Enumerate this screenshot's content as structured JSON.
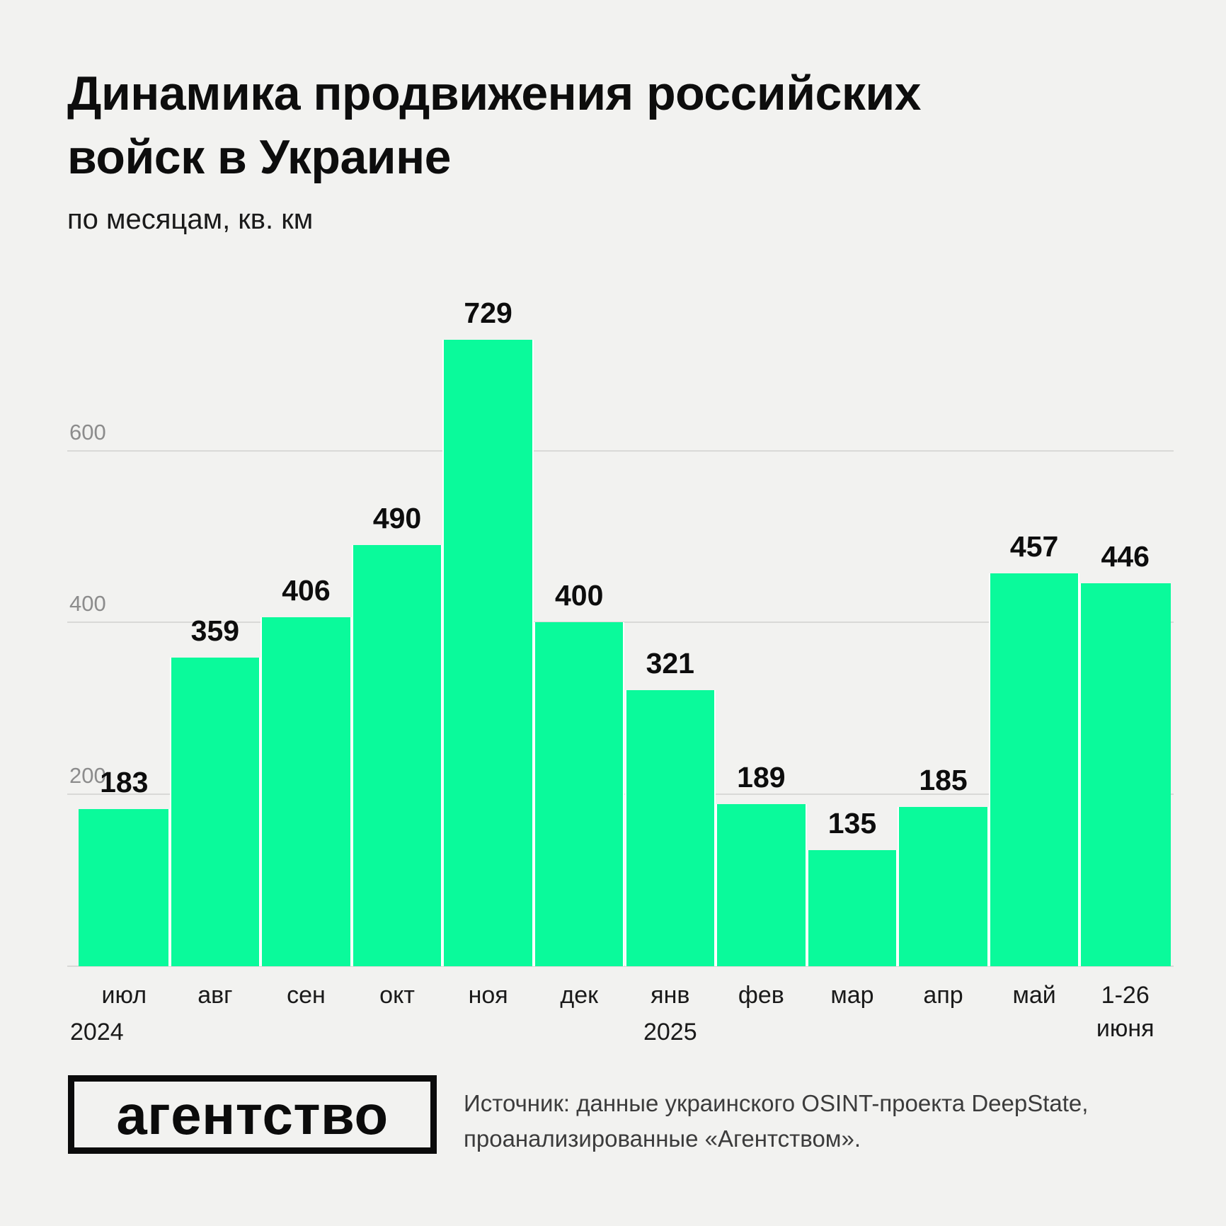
{
  "chart_data": {
    "type": "bar",
    "title": "Динамика продвижения российских войск в Украине",
    "subtitle": "по месяцам, кв. км",
    "categories": [
      "июл",
      "авг",
      "сен",
      "окт",
      "ноя",
      "дек",
      "янв",
      "фев",
      "мар",
      "апр",
      "май",
      "1-26 июня"
    ],
    "values": [
      183,
      359,
      406,
      490,
      729,
      400,
      321,
      189,
      135,
      185,
      457,
      446
    ],
    "year_labels": [
      {
        "text": "2024",
        "slot": 0,
        "align": "left"
      },
      {
        "text": "2025",
        "slot": 6,
        "align": "center"
      }
    ],
    "yticks": [
      200,
      400,
      600
    ],
    "ylim": [
      0,
      760
    ],
    "grid": true,
    "legend": "none",
    "xlabel": "",
    "ylabel": "",
    "bar_color": "#0afa9b",
    "bar_gap_color": "#ffffff",
    "grid_color": "#d9d9d7",
    "tick_label_color": "#8c8c8c",
    "value_label_color": "#0d0d0d",
    "background_color": "#f2f2f0"
  },
  "footer": {
    "logo_text": "агентство",
    "source_line1": "Источник: данные украинского OSINT-проекта DeepState,",
    "source_line2": "проанализированные «Агентством»."
  }
}
